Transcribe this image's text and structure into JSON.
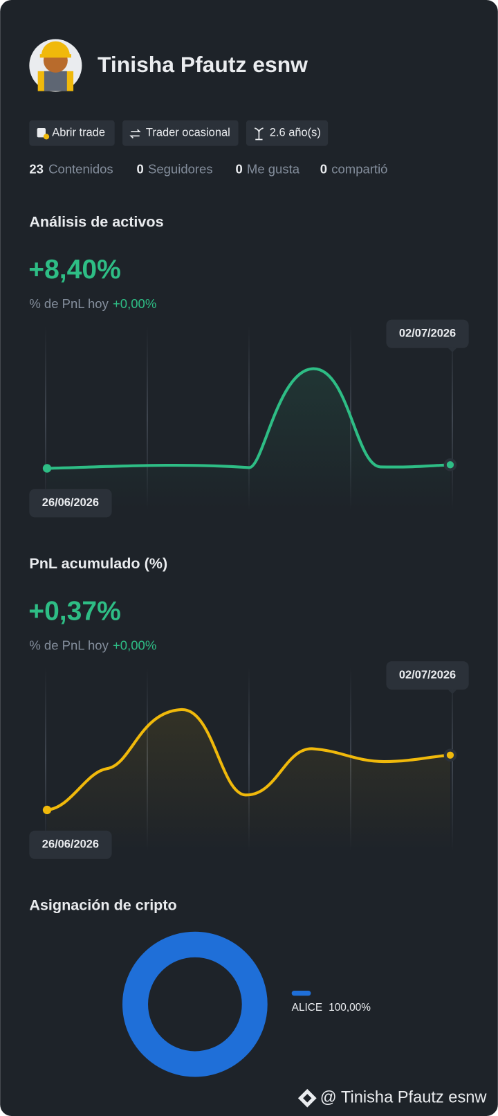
{
  "profile": {
    "name": "Tinisha Pfautz esnw",
    "badges": [
      "Abrir trade",
      "Trader ocasional",
      "2.6 año(s)"
    ],
    "stats": [
      {
        "value": 23,
        "label": "Contenidos"
      },
      {
        "value": 0,
        "label": "Seguidores"
      },
      {
        "value": 0,
        "label": "Me gusta"
      },
      {
        "value": 0,
        "label": "compartió"
      }
    ]
  },
  "asset_analysis": {
    "title": "Análisis de activos",
    "value": "+8,40%",
    "pnl_label": "% de PnL hoy",
    "pnl_today": "+0,00%",
    "start_date": "26/06/2026",
    "end_date": "02/07/2026"
  },
  "cumulative_pnl": {
    "title": "PnL acumulado (%)",
    "value": "+0,37%",
    "pnl_label": "% de PnL hoy",
    "pnl_today": "+0,00%",
    "start_date": "26/06/2026",
    "end_date": "02/07/2026"
  },
  "allocation": {
    "title": "Asignación de cripto",
    "items": [
      {
        "name": "ALICE",
        "value": 100,
        "value_label": "100,00%",
        "color": "#1f6fd8"
      }
    ]
  },
  "watermark": "@ Tinisha Pfautz esnw"
}
